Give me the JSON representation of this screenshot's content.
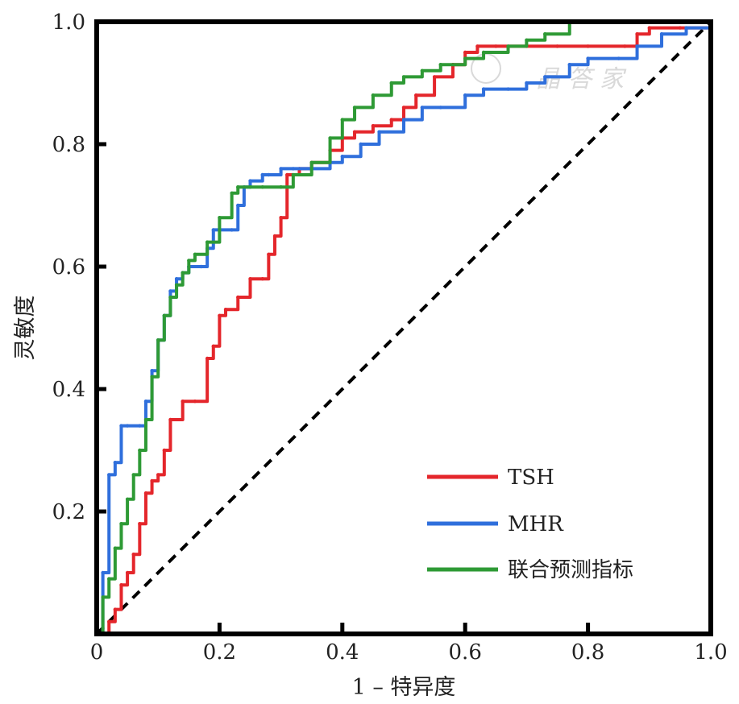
{
  "chart_data": {
    "type": "line",
    "title": "",
    "xlabel": "1 – 特异度",
    "ylabel": "灵敏度",
    "xlim": [
      0,
      1
    ],
    "ylim": [
      0,
      1
    ],
    "x_ticks": [
      "0",
      "0.2",
      "0.4",
      "0.6",
      "0.8",
      "1.0"
    ],
    "y_ticks": [
      "0.2",
      "0.4",
      "0.6",
      "0.8",
      "1.0"
    ],
    "grid": false,
    "legend_position": "bottom-right",
    "reference_line": {
      "x": [
        0,
        1
      ],
      "y": [
        0,
        1
      ],
      "style": "dashed",
      "color": "#000000"
    },
    "series": [
      {
        "name": "TSH",
        "color": "#e4262b",
        "x": [
          0,
          0.02,
          0.03,
          0.04,
          0.05,
          0.06,
          0.07,
          0.08,
          0.09,
          0.1,
          0.11,
          0.12,
          0.14,
          0.16,
          0.18,
          0.19,
          0.2,
          0.21,
          0.23,
          0.25,
          0.27,
          0.28,
          0.29,
          0.3,
          0.31,
          0.33,
          0.35,
          0.38,
          0.4,
          0.42,
          0.45,
          0.48,
          0.5,
          0.52,
          0.55,
          0.58,
          0.6,
          0.62,
          0.65,
          0.7,
          0.75,
          0.8,
          0.86,
          0.88,
          0.9,
          0.95,
          1.0
        ],
        "y": [
          0,
          0.02,
          0.04,
          0.08,
          0.1,
          0.13,
          0.18,
          0.23,
          0.25,
          0.26,
          0.3,
          0.35,
          0.38,
          0.38,
          0.45,
          0.47,
          0.52,
          0.53,
          0.55,
          0.58,
          0.58,
          0.62,
          0.65,
          0.68,
          0.75,
          0.76,
          0.77,
          0.79,
          0.81,
          0.82,
          0.83,
          0.84,
          0.86,
          0.88,
          0.91,
          0.93,
          0.95,
          0.96,
          0.96,
          0.96,
          0.96,
          0.96,
          0.96,
          0.98,
          0.99,
          0.99,
          1.0
        ],
        "style": "step"
      },
      {
        "name": "MHR",
        "color": "#2f6fdc",
        "x": [
          0,
          0.01,
          0.02,
          0.03,
          0.04,
          0.05,
          0.07,
          0.08,
          0.09,
          0.1,
          0.11,
          0.12,
          0.13,
          0.14,
          0.15,
          0.17,
          0.18,
          0.19,
          0.2,
          0.22,
          0.23,
          0.24,
          0.25,
          0.27,
          0.28,
          0.3,
          0.32,
          0.35,
          0.38,
          0.4,
          0.43,
          0.46,
          0.5,
          0.53,
          0.56,
          0.6,
          0.63,
          0.67,
          0.7,
          0.73,
          0.77,
          0.8,
          0.85,
          0.88,
          0.92,
          0.96,
          1.0
        ],
        "y": [
          0,
          0.1,
          0.26,
          0.28,
          0.34,
          0.34,
          0.34,
          0.38,
          0.43,
          0.48,
          0.52,
          0.56,
          0.58,
          0.59,
          0.6,
          0.6,
          0.63,
          0.66,
          0.66,
          0.66,
          0.7,
          0.73,
          0.74,
          0.75,
          0.75,
          0.76,
          0.76,
          0.76,
          0.77,
          0.78,
          0.8,
          0.82,
          0.84,
          0.86,
          0.86,
          0.88,
          0.89,
          0.89,
          0.9,
          0.91,
          0.93,
          0.94,
          0.94,
          0.96,
          0.98,
          0.99,
          1.0
        ],
        "style": "step"
      },
      {
        "name": "联合预测指标",
        "color": "#2e9a35",
        "x": [
          0,
          0.01,
          0.02,
          0.03,
          0.04,
          0.05,
          0.06,
          0.07,
          0.08,
          0.09,
          0.1,
          0.11,
          0.12,
          0.13,
          0.14,
          0.15,
          0.16,
          0.18,
          0.2,
          0.22,
          0.23,
          0.25,
          0.27,
          0.3,
          0.32,
          0.35,
          0.38,
          0.4,
          0.42,
          0.45,
          0.48,
          0.5,
          0.53,
          0.56,
          0.6,
          0.63,
          0.67,
          0.7,
          0.73,
          0.77,
          0.8,
          0.85,
          0.9,
          0.95,
          1.0
        ],
        "y": [
          0,
          0.06,
          0.09,
          0.14,
          0.18,
          0.22,
          0.26,
          0.3,
          0.35,
          0.42,
          0.48,
          0.52,
          0.55,
          0.57,
          0.59,
          0.61,
          0.62,
          0.64,
          0.68,
          0.72,
          0.73,
          0.73,
          0.73,
          0.73,
          0.75,
          0.77,
          0.81,
          0.84,
          0.86,
          0.88,
          0.9,
          0.91,
          0.92,
          0.93,
          0.94,
          0.95,
          0.96,
          0.97,
          0.98,
          1.0,
          1.0,
          1.0,
          1.0,
          1.0,
          1.0
        ],
        "style": "step"
      }
    ]
  }
}
